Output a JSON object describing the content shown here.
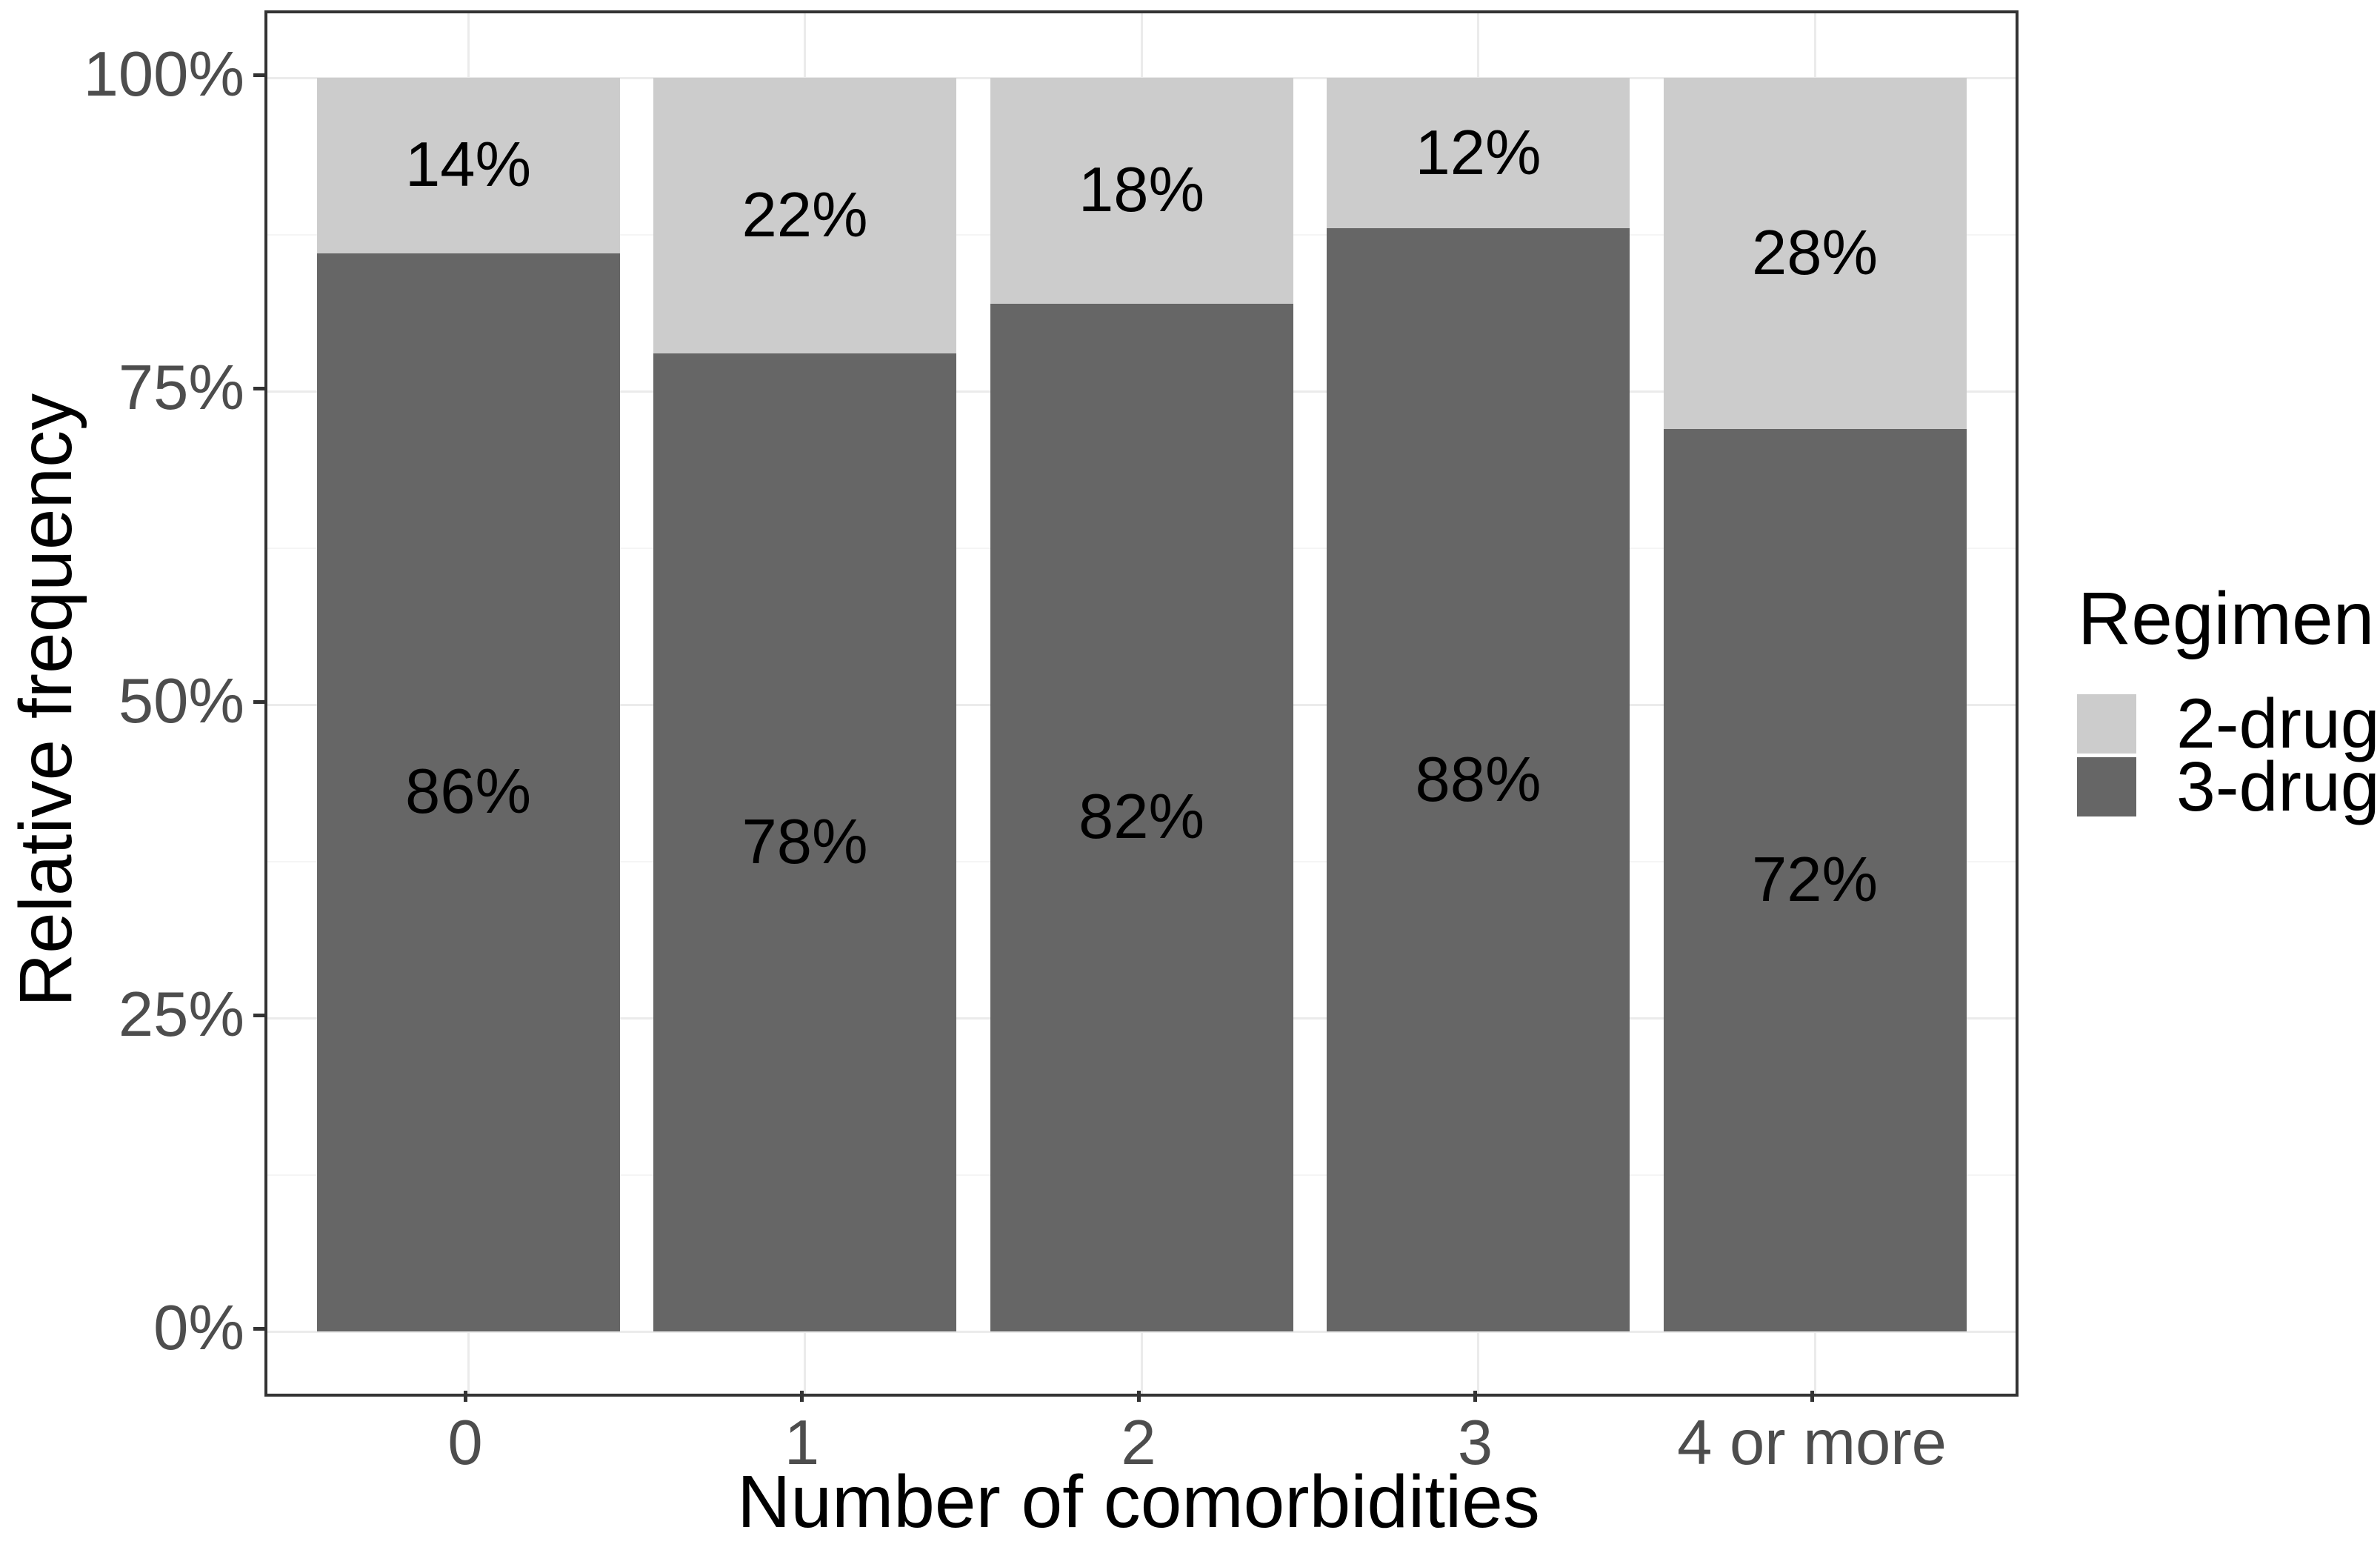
{
  "chart_data": {
    "type": "bar",
    "stacked": true,
    "orientation": "vertical",
    "title": "",
    "xlabel": "Number of comorbidities",
    "ylabel": "Relative frequency",
    "categories": [
      "0",
      "1",
      "2",
      "3",
      "4 or more"
    ],
    "series": [
      {
        "name": "3-drug",
        "color": "#666666",
        "values": [
          86,
          78,
          82,
          88,
          72
        ],
        "labels": [
          "86%",
          "78%",
          "82%",
          "88%",
          "72%"
        ]
      },
      {
        "name": "2-drug",
        "color": "#cccccc",
        "values": [
          14,
          22,
          18,
          12,
          28
        ],
        "labels": [
          "14%",
          "22%",
          "18%",
          "12%",
          "28%"
        ]
      }
    ],
    "ylim": [
      0,
      100
    ],
    "yticks": [
      {
        "value": 0,
        "label": "0%"
      },
      {
        "value": 25,
        "label": "25%"
      },
      {
        "value": 50,
        "label": "50%"
      },
      {
        "value": 75,
        "label": "75%"
      },
      {
        "value": 100,
        "label": "100%"
      }
    ],
    "grid": {
      "major": [
        0,
        25,
        50,
        75,
        100
      ],
      "minor": [
        12.5,
        37.5,
        62.5,
        87.5
      ],
      "vertical_at_categories": true
    },
    "legend": {
      "title": "Regimen",
      "position": "right",
      "entries": [
        {
          "label": "2-drug",
          "color": "#cccccc"
        },
        {
          "label": "3-drug",
          "color": "#666666"
        }
      ]
    }
  },
  "colors": {
    "background": "#ffffff",
    "panel_border": "#333333",
    "tick_mark": "#333333",
    "tick_text": "#4d4d4d",
    "grid_major": "#ebebeb",
    "grid_minor": "#f5f5f5",
    "bar_label": "#000000"
  }
}
